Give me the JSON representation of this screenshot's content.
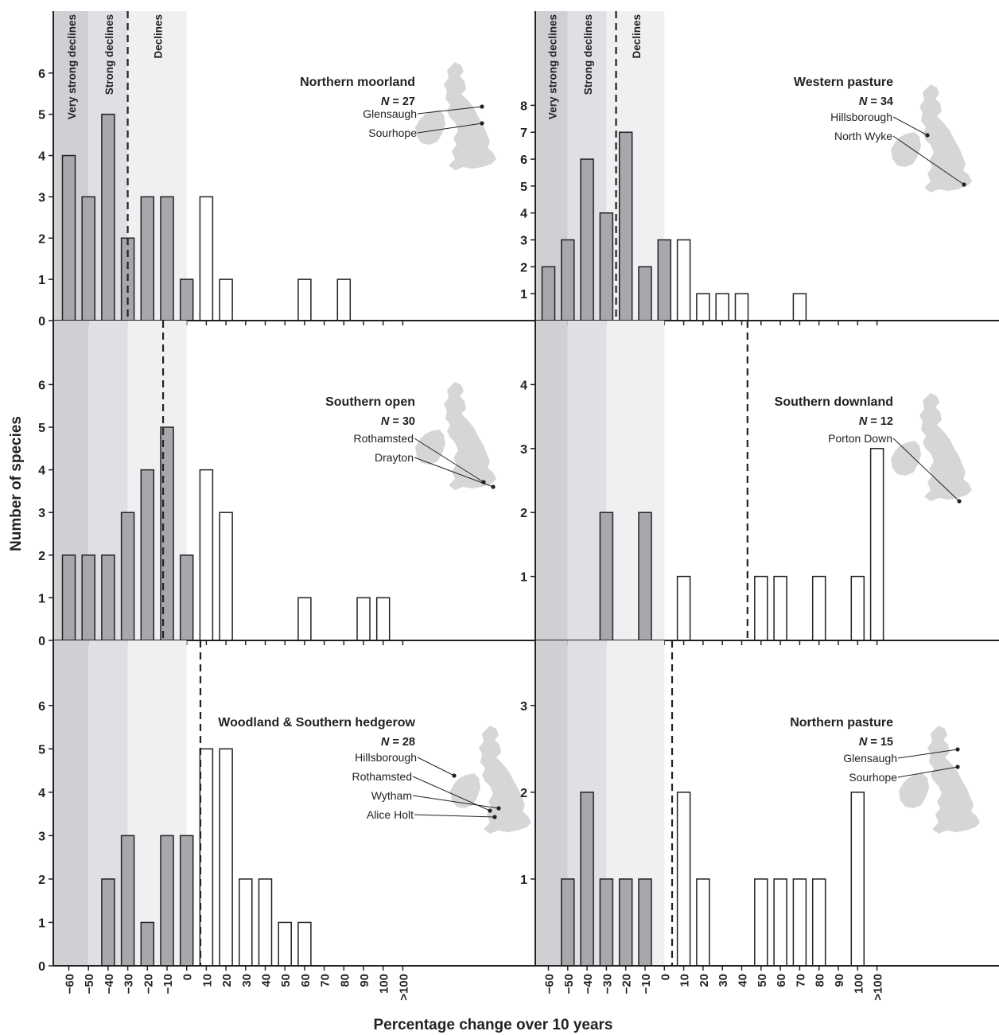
{
  "figure": {
    "ylabel": "Number of species",
    "xlabel": "Percentage change over 10 years",
    "zones": [
      "Very strong declines",
      "Strong declines",
      "Declines"
    ],
    "n_prefix": "N",
    "colors": {
      "zone_very_strong": "#d0d0d4",
      "zone_strong": "#e0e0e4",
      "zone_declines": "#eff0f2",
      "bar_decline": "#a8a8ac",
      "bar_increase": "#ffffff",
      "map": "#d6d6d9",
      "axis": "#222222"
    }
  },
  "chart_data": [
    {
      "type": "bar",
      "title": "Northern moorland",
      "n": "27",
      "categories": [
        "-60",
        "-50",
        "-40",
        "-30",
        "-20",
        "-10",
        "0",
        "10",
        "20",
        "30",
        "40",
        "50",
        "60",
        "70",
        "80",
        "90",
        "100",
        ">100"
      ],
      "values": [
        4,
        3,
        5,
        2,
        3,
        3,
        1,
        3,
        1,
        0,
        0,
        0,
        1,
        0,
        1,
        0,
        0,
        0
      ],
      "median": -30,
      "ylim": [
        0,
        7.5
      ],
      "yticks": [
        0,
        1,
        2,
        3,
        4,
        5,
        6
      ],
      "sites": [
        "Glensaugh",
        "Sourhope"
      ],
      "zone_labels_shown": true
    },
    {
      "type": "bar",
      "title": "Western pasture",
      "n": "34",
      "categories": [
        "-60",
        "-50",
        "-40",
        "-30",
        "-20",
        "-10",
        "0",
        "10",
        "20",
        "30",
        "40",
        "50",
        "60",
        "70",
        "80",
        "90",
        "100",
        ">100"
      ],
      "values": [
        2,
        3,
        6,
        4,
        7,
        2,
        3,
        3,
        1,
        1,
        1,
        0,
        0,
        1,
        0,
        0,
        0,
        0
      ],
      "median": -25,
      "ylim": [
        0,
        11.5
      ],
      "yticks": [
        1,
        2,
        3,
        4,
        5,
        6,
        7,
        8
      ],
      "sites": [
        "Hillsborough",
        "North Wyke"
      ],
      "zone_labels_shown": true
    },
    {
      "type": "bar",
      "title": "Southern open",
      "n": "30",
      "categories": [
        "-60",
        "-50",
        "-40",
        "-30",
        "-20",
        "-10",
        "0",
        "10",
        "20",
        "30",
        "40",
        "50",
        "60",
        "70",
        "80",
        "90",
        "100",
        ">100"
      ],
      "values": [
        2,
        2,
        2,
        3,
        4,
        5,
        2,
        4,
        3,
        0,
        0,
        0,
        1,
        0,
        0,
        1,
        1,
        0
      ],
      "median": -12,
      "ylim": [
        0,
        7.5
      ],
      "yticks": [
        0,
        1,
        2,
        3,
        4,
        5,
        6
      ],
      "sites": [
        "Rothamsted",
        "Drayton"
      ],
      "zone_labels_shown": false
    },
    {
      "type": "bar",
      "title": "Southern downland",
      "n": "12",
      "categories": [
        "-60",
        "-50",
        "-40",
        "-30",
        "-20",
        "-10",
        "0",
        "10",
        "20",
        "30",
        "40",
        "50",
        "60",
        "70",
        "80",
        "90",
        "100",
        ">100"
      ],
      "values": [
        0,
        0,
        0,
        2,
        0,
        2,
        0,
        1,
        0,
        0,
        0,
        1,
        1,
        0,
        1,
        0,
        1,
        3
      ],
      "median": 43,
      "ylim": [
        0,
        5
      ],
      "yticks": [
        1,
        2,
        3,
        4
      ],
      "sites": [
        "Porton Down"
      ],
      "zone_labels_shown": false
    },
    {
      "type": "bar",
      "title": "Woodland & Southern hedgerow",
      "n": "28",
      "categories": [
        "-60",
        "-50",
        "-40",
        "-30",
        "-20",
        "-10",
        "0",
        "10",
        "20",
        "30",
        "40",
        "50",
        "60",
        "70",
        "80",
        "90",
        "100",
        ">100"
      ],
      "values": [
        0,
        0,
        2,
        3,
        1,
        3,
        3,
        5,
        5,
        2,
        2,
        1,
        1,
        0,
        0,
        0,
        0,
        0
      ],
      "median": 7,
      "ylim": [
        0,
        7.5
      ],
      "yticks": [
        0,
        1,
        2,
        3,
        4,
        5,
        6
      ],
      "sites": [
        "Hillsborough",
        "Rothamsted",
        "Wytham",
        "Alice Holt"
      ],
      "zone_labels_shown": false
    },
    {
      "type": "bar",
      "title": "Northern pasture",
      "n": "15",
      "categories": [
        "-60",
        "-50",
        "-40",
        "-30",
        "-20",
        "-10",
        "0",
        "10",
        "20",
        "30",
        "40",
        "50",
        "60",
        "70",
        "80",
        "90",
        "100",
        ">100"
      ],
      "values": [
        0,
        1,
        2,
        1,
        1,
        1,
        0,
        2,
        1,
        0,
        0,
        1,
        1,
        1,
        1,
        0,
        2,
        0
      ],
      "median": 4,
      "ylim": [
        0,
        3.75
      ],
      "yticks": [
        1,
        2,
        3
      ],
      "sites": [
        "Glensaugh",
        "Sourhope"
      ],
      "zone_labels_shown": false
    }
  ]
}
